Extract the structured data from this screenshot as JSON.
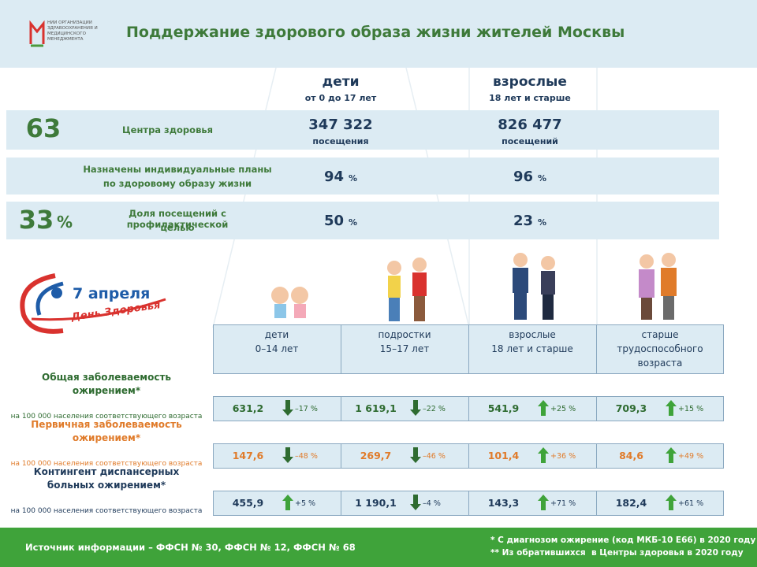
{
  "header": {
    "logo_text": "НИИ ОРГАНИЗАЦИИ ЗДРАВООХРАНЕНИЯ И МЕДИЦИНСКОГО МЕНЕДЖМЕНТА",
    "title": "Поддержание здорового образа жизни жителей Москвы"
  },
  "summary": {
    "columns": [
      {
        "label": "дети",
        "sub": "от 0 до 17 лет"
      },
      {
        "label": "взрослые",
        "sub": "18 лет и старше"
      }
    ],
    "rows": [
      {
        "lead": "63",
        "label_lines": [
          "Центра здоровья"
        ],
        "cells": [
          {
            "value": "347 322",
            "unit": "посещения"
          },
          {
            "value": "826 477",
            "unit": "посещений"
          }
        ]
      },
      {
        "label_lines": [
          "Назначены индивидуальные планы",
          "по здоровому образу жизни"
        ],
        "cells": [
          {
            "value": "94",
            "unit": "%"
          },
          {
            "value": "96",
            "unit": "%"
          }
        ]
      },
      {
        "lead": "33",
        "lead_unit": "%",
        "label_lines": [
          "Доля посещений с профилактической",
          "целью"
        ],
        "cells": [
          {
            "value": "50",
            "unit": "%"
          },
          {
            "value": "23",
            "unit": "%"
          }
        ]
      }
    ]
  },
  "event": {
    "date": "7 апреля",
    "name": "День Здоровья"
  },
  "table": {
    "columns": [
      [
        "дети",
        "0–14 лет"
      ],
      [
        "подростки",
        "15–17 лет"
      ],
      [
        "взрослые",
        "18 лет и старше"
      ],
      [
        "старше",
        "трудоспособного",
        "возраста"
      ]
    ],
    "rows": [
      {
        "title_lines": [
          "Общая заболеваемость",
          "ожирением*"
        ],
        "color": "#2e6b30",
        "note": "на 100 000 населения соответствующего возраста",
        "cells": [
          {
            "value": "631,2",
            "change": "–17 %",
            "trend": "down"
          },
          {
            "value": "1 619,1",
            "change": "–22 %",
            "trend": "down"
          },
          {
            "value": "541,9",
            "change": "+25 %",
            "trend": "up"
          },
          {
            "value": "709,3",
            "change": "+15 %",
            "trend": "up"
          }
        ]
      },
      {
        "title_lines": [
          "Первичная заболеваемость",
          "ожирением*"
        ],
        "color": "#e07b2a",
        "note": "на 100 000 населения соответствующего возраста",
        "cells": [
          {
            "value": "147,6",
            "change": "–48 %",
            "trend": "down"
          },
          {
            "value": "269,7",
            "change": "–46 %",
            "trend": "down"
          },
          {
            "value": "101,4",
            "change": "+36 %",
            "trend": "up"
          },
          {
            "value": "84,6",
            "change": "+49 %",
            "trend": "up"
          }
        ]
      },
      {
        "title_lines": [
          "Контингент диспансерных",
          "больных ожирением*"
        ],
        "color": "#1f3a5a",
        "note": "на 100 000 населения соответствующего возраста",
        "cells": [
          {
            "value": "455,9",
            "change": "+5 %",
            "trend": "up"
          },
          {
            "value": "1 190,1",
            "change": "–4 %",
            "trend": "down"
          },
          {
            "value": "143,3",
            "change": "+71 %",
            "trend": "up"
          },
          {
            "value": "182,4",
            "change": "+61 %",
            "trend": "up"
          }
        ]
      }
    ]
  },
  "footer": {
    "source": "Источник информации – ФФСН № 30, ФФСН № 12, ФФСН № 68",
    "notes": [
      "* С диагнозом ожирение (код МКБ-10 E66) в 2020 году",
      "** Из обратившихся  в Центры здоровья в 2020 году"
    ]
  }
}
